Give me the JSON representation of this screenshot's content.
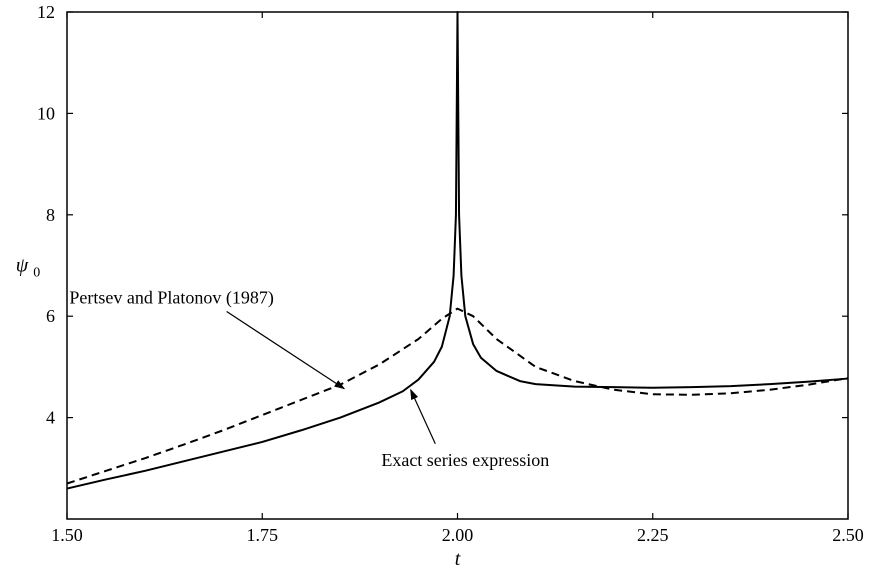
{
  "chart_data": {
    "type": "line",
    "xlabel": "t",
    "ylabel_main": "ψ",
    "ylabel_sub": "0",
    "xlim": [
      1.5,
      2.5
    ],
    "ylim": [
      2.0,
      12.0
    ],
    "xticks": [
      1.5,
      1.75,
      2.0,
      2.25,
      2.5
    ],
    "xtick_labels": [
      "1.50",
      "1.75",
      "2.00",
      "2.25",
      "2.50"
    ],
    "yticks": [
      4,
      6,
      8,
      10,
      12
    ],
    "ytick_labels": [
      "4",
      "6",
      "8",
      "10",
      "12"
    ],
    "grid": false,
    "series": [
      {
        "name": "Exact series expression",
        "style": "solid",
        "x": [
          1.5,
          1.55,
          1.6,
          1.65,
          1.7,
          1.75,
          1.8,
          1.85,
          1.9,
          1.93,
          1.95,
          1.97,
          1.98,
          1.99,
          1.995,
          1.998,
          2.0,
          2.002,
          2.005,
          2.01,
          2.02,
          2.03,
          2.05,
          2.08,
          2.1,
          2.15,
          2.2,
          2.25,
          2.3,
          2.35,
          2.4,
          2.45,
          2.5
        ],
        "y": [
          2.6,
          2.78,
          2.95,
          3.14,
          3.33,
          3.52,
          3.75,
          4.0,
          4.3,
          4.52,
          4.75,
          5.1,
          5.4,
          6.0,
          6.8,
          8.0,
          12.0,
          8.0,
          6.8,
          6.0,
          5.45,
          5.18,
          4.92,
          4.72,
          4.66,
          4.61,
          4.6,
          4.59,
          4.6,
          4.62,
          4.66,
          4.71,
          4.77
        ]
      },
      {
        "name": "Pertsev and Platonov (1987)",
        "style": "dashed",
        "x": [
          1.5,
          1.55,
          1.6,
          1.65,
          1.7,
          1.75,
          1.8,
          1.85,
          1.9,
          1.95,
          1.98,
          2.0,
          2.02,
          2.05,
          2.1,
          2.15,
          2.2,
          2.25,
          2.3,
          2.35,
          2.4,
          2.45,
          2.5
        ],
        "y": [
          2.7,
          2.95,
          3.2,
          3.47,
          3.75,
          4.05,
          4.35,
          4.65,
          5.05,
          5.55,
          5.95,
          6.15,
          6.0,
          5.55,
          5.0,
          4.72,
          4.55,
          4.46,
          4.45,
          4.48,
          4.55,
          4.65,
          4.78
        ]
      }
    ],
    "annotations": [
      {
        "text": "Pertsev and Platonov (1987)",
        "series_index": 1,
        "point_x": 1.855,
        "point_y": 4.57,
        "anchor_x": 1.634,
        "anchor_y": 6.25
      },
      {
        "text": "Exact series expression",
        "series_index": 0,
        "point_x": 1.94,
        "point_y": 4.55,
        "anchor_x": 2.01,
        "anchor_y": 3.05
      }
    ]
  }
}
